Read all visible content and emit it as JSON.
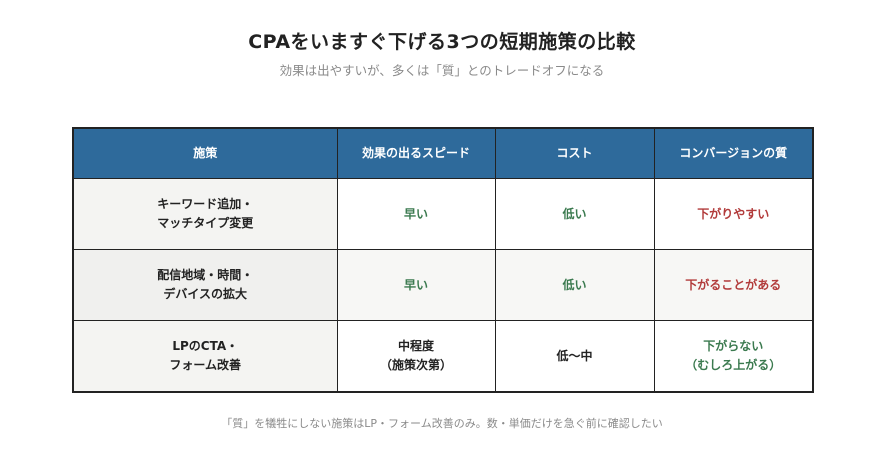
{
  "header": {
    "title": "CPAをいますぐ下げる3つの短期施策の比較",
    "subtitle": "効果は出やすいが、多くは「質」とのトレードオフになる"
  },
  "table": {
    "columns": [
      "施策",
      "効果の出るスピード",
      "コスト",
      "コンバージョンの質"
    ],
    "rows": [
      {
        "measure": [
          "キーワード追加・",
          "マッチタイプ変更"
        ],
        "speed": [
          "早い"
        ],
        "cost": [
          "低い"
        ],
        "quality": [
          "下がりやすい"
        ]
      },
      {
        "measure": [
          "配信地域・時間・",
          "デバイスの拡大"
        ],
        "speed": [
          "早い"
        ],
        "cost": [
          "低い"
        ],
        "quality": [
          "下がることがある"
        ]
      },
      {
        "measure": [
          "LPのCTA・",
          "フォーム改善"
        ],
        "speed": [
          "中程度",
          "（施策次第）"
        ],
        "cost": [
          "低〜中"
        ],
        "quality": [
          "下がらない",
          "（むしろ上がる）"
        ]
      }
    ]
  },
  "colors": {
    "header_bg": "#2e6a9b",
    "positive": "#3b7a4f",
    "negative": "#b23b3b"
  },
  "footer": {
    "note": "「質」を犠牲にしない施策はLP・フォーム改善のみ。数・単価だけを急ぐ前に確認したい"
  }
}
